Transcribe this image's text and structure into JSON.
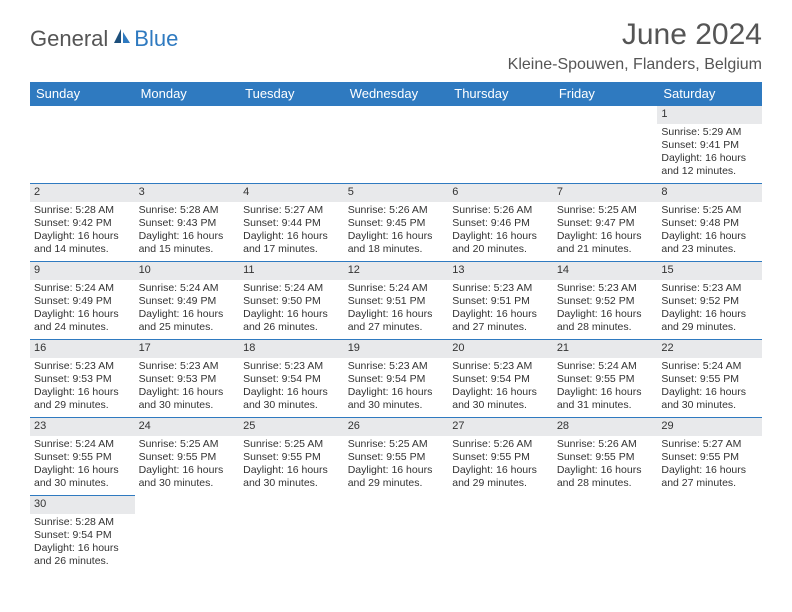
{
  "logo": {
    "text1": "General",
    "text2": "Blue"
  },
  "title": "June 2024",
  "location": "Kleine-Spouwen, Flanders, Belgium",
  "colors": {
    "header_bg": "#2f7ac0",
    "header_text": "#ffffff",
    "daynum_bg": "#e8e9eb",
    "border": "#2f7ac0",
    "logo_blue": "#2f7ac0",
    "logo_gray": "#555555"
  },
  "day_headers": [
    "Sunday",
    "Monday",
    "Tuesday",
    "Wednesday",
    "Thursday",
    "Friday",
    "Saturday"
  ],
  "weeks": [
    [
      null,
      null,
      null,
      null,
      null,
      null,
      {
        "n": "1",
        "sr": "Sunrise: 5:29 AM",
        "ss": "Sunset: 9:41 PM",
        "d1": "Daylight: 16 hours",
        "d2": "and 12 minutes."
      }
    ],
    [
      {
        "n": "2",
        "sr": "Sunrise: 5:28 AM",
        "ss": "Sunset: 9:42 PM",
        "d1": "Daylight: 16 hours",
        "d2": "and 14 minutes."
      },
      {
        "n": "3",
        "sr": "Sunrise: 5:28 AM",
        "ss": "Sunset: 9:43 PM",
        "d1": "Daylight: 16 hours",
        "d2": "and 15 minutes."
      },
      {
        "n": "4",
        "sr": "Sunrise: 5:27 AM",
        "ss": "Sunset: 9:44 PM",
        "d1": "Daylight: 16 hours",
        "d2": "and 17 minutes."
      },
      {
        "n": "5",
        "sr": "Sunrise: 5:26 AM",
        "ss": "Sunset: 9:45 PM",
        "d1": "Daylight: 16 hours",
        "d2": "and 18 minutes."
      },
      {
        "n": "6",
        "sr": "Sunrise: 5:26 AM",
        "ss": "Sunset: 9:46 PM",
        "d1": "Daylight: 16 hours",
        "d2": "and 20 minutes."
      },
      {
        "n": "7",
        "sr": "Sunrise: 5:25 AM",
        "ss": "Sunset: 9:47 PM",
        "d1": "Daylight: 16 hours",
        "d2": "and 21 minutes."
      },
      {
        "n": "8",
        "sr": "Sunrise: 5:25 AM",
        "ss": "Sunset: 9:48 PM",
        "d1": "Daylight: 16 hours",
        "d2": "and 23 minutes."
      }
    ],
    [
      {
        "n": "9",
        "sr": "Sunrise: 5:24 AM",
        "ss": "Sunset: 9:49 PM",
        "d1": "Daylight: 16 hours",
        "d2": "and 24 minutes."
      },
      {
        "n": "10",
        "sr": "Sunrise: 5:24 AM",
        "ss": "Sunset: 9:49 PM",
        "d1": "Daylight: 16 hours",
        "d2": "and 25 minutes."
      },
      {
        "n": "11",
        "sr": "Sunrise: 5:24 AM",
        "ss": "Sunset: 9:50 PM",
        "d1": "Daylight: 16 hours",
        "d2": "and 26 minutes."
      },
      {
        "n": "12",
        "sr": "Sunrise: 5:24 AM",
        "ss": "Sunset: 9:51 PM",
        "d1": "Daylight: 16 hours",
        "d2": "and 27 minutes."
      },
      {
        "n": "13",
        "sr": "Sunrise: 5:23 AM",
        "ss": "Sunset: 9:51 PM",
        "d1": "Daylight: 16 hours",
        "d2": "and 27 minutes."
      },
      {
        "n": "14",
        "sr": "Sunrise: 5:23 AM",
        "ss": "Sunset: 9:52 PM",
        "d1": "Daylight: 16 hours",
        "d2": "and 28 minutes."
      },
      {
        "n": "15",
        "sr": "Sunrise: 5:23 AM",
        "ss": "Sunset: 9:52 PM",
        "d1": "Daylight: 16 hours",
        "d2": "and 29 minutes."
      }
    ],
    [
      {
        "n": "16",
        "sr": "Sunrise: 5:23 AM",
        "ss": "Sunset: 9:53 PM",
        "d1": "Daylight: 16 hours",
        "d2": "and 29 minutes."
      },
      {
        "n": "17",
        "sr": "Sunrise: 5:23 AM",
        "ss": "Sunset: 9:53 PM",
        "d1": "Daylight: 16 hours",
        "d2": "and 30 minutes."
      },
      {
        "n": "18",
        "sr": "Sunrise: 5:23 AM",
        "ss": "Sunset: 9:54 PM",
        "d1": "Daylight: 16 hours",
        "d2": "and 30 minutes."
      },
      {
        "n": "19",
        "sr": "Sunrise: 5:23 AM",
        "ss": "Sunset: 9:54 PM",
        "d1": "Daylight: 16 hours",
        "d2": "and 30 minutes."
      },
      {
        "n": "20",
        "sr": "Sunrise: 5:23 AM",
        "ss": "Sunset: 9:54 PM",
        "d1": "Daylight: 16 hours",
        "d2": "and 30 minutes."
      },
      {
        "n": "21",
        "sr": "Sunrise: 5:24 AM",
        "ss": "Sunset: 9:55 PM",
        "d1": "Daylight: 16 hours",
        "d2": "and 31 minutes."
      },
      {
        "n": "22",
        "sr": "Sunrise: 5:24 AM",
        "ss": "Sunset: 9:55 PM",
        "d1": "Daylight: 16 hours",
        "d2": "and 30 minutes."
      }
    ],
    [
      {
        "n": "23",
        "sr": "Sunrise: 5:24 AM",
        "ss": "Sunset: 9:55 PM",
        "d1": "Daylight: 16 hours",
        "d2": "and 30 minutes."
      },
      {
        "n": "24",
        "sr": "Sunrise: 5:25 AM",
        "ss": "Sunset: 9:55 PM",
        "d1": "Daylight: 16 hours",
        "d2": "and 30 minutes."
      },
      {
        "n": "25",
        "sr": "Sunrise: 5:25 AM",
        "ss": "Sunset: 9:55 PM",
        "d1": "Daylight: 16 hours",
        "d2": "and 30 minutes."
      },
      {
        "n": "26",
        "sr": "Sunrise: 5:25 AM",
        "ss": "Sunset: 9:55 PM",
        "d1": "Daylight: 16 hours",
        "d2": "and 29 minutes."
      },
      {
        "n": "27",
        "sr": "Sunrise: 5:26 AM",
        "ss": "Sunset: 9:55 PM",
        "d1": "Daylight: 16 hours",
        "d2": "and 29 minutes."
      },
      {
        "n": "28",
        "sr": "Sunrise: 5:26 AM",
        "ss": "Sunset: 9:55 PM",
        "d1": "Daylight: 16 hours",
        "d2": "and 28 minutes."
      },
      {
        "n": "29",
        "sr": "Sunrise: 5:27 AM",
        "ss": "Sunset: 9:55 PM",
        "d1": "Daylight: 16 hours",
        "d2": "and 27 minutes."
      }
    ],
    [
      {
        "n": "30",
        "sr": "Sunrise: 5:28 AM",
        "ss": "Sunset: 9:54 PM",
        "d1": "Daylight: 16 hours",
        "d2": "and 26 minutes."
      },
      null,
      null,
      null,
      null,
      null,
      null
    ]
  ]
}
